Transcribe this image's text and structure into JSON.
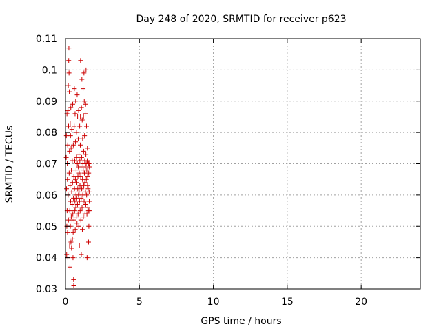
{
  "chart_data": {
    "type": "scatter",
    "title": "Day 248 of 2020, SRMTID for receiver p623",
    "xlabel": "GPS time / hours",
    "ylabel": "SRMTID / TECUs",
    "xlim": [
      0,
      24
    ],
    "ylim": [
      0.03,
      0.11
    ],
    "xticks": [
      0,
      5,
      10,
      15,
      20
    ],
    "xtick_labels": [
      "0",
      "5",
      "10",
      "15",
      "20"
    ],
    "yticks": [
      0.03,
      0.04,
      0.05,
      0.06,
      0.07,
      0.08,
      0.09,
      0.1,
      0.11
    ],
    "ytick_labels": [
      "0.03",
      "0.04",
      "0.05",
      "0.06",
      "0.07",
      "0.08",
      "0.09",
      "0.1",
      "0.11"
    ],
    "grid": true,
    "marker": "+",
    "color": "#cc0000",
    "series": [
      {
        "name": "",
        "points": [
          [
            0.05,
            0.072
          ],
          [
            0.06,
            0.079
          ],
          [
            0.07,
            0.062
          ],
          [
            0.08,
            0.041
          ],
          [
            0.09,
            0.05
          ],
          [
            0.1,
            0.086
          ],
          [
            0.11,
            0.055
          ],
          [
            0.12,
            0.07
          ],
          [
            0.13,
            0.065
          ],
          [
            0.14,
            0.048
          ],
          [
            0.15,
            0.076
          ],
          [
            0.16,
            0.04
          ],
          [
            0.17,
            0.087
          ],
          [
            0.18,
            0.06
          ],
          [
            0.19,
            0.095
          ],
          [
            0.2,
            0.052
          ],
          [
            0.21,
            0.082
          ],
          [
            0.22,
            0.103
          ],
          [
            0.23,
            0.107
          ],
          [
            0.24,
            0.099
          ],
          [
            0.25,
            0.067
          ],
          [
            0.26,
            0.093
          ],
          [
            0.27,
            0.074
          ],
          [
            0.28,
            0.044
          ],
          [
            0.29,
            0.055
          ],
          [
            0.3,
            0.037
          ],
          [
            0.31,
            0.063
          ],
          [
            0.32,
            0.083
          ],
          [
            0.33,
            0.05
          ],
          [
            0.34,
            0.079
          ],
          [
            0.35,
            0.058
          ],
          [
            0.36,
            0.088
          ],
          [
            0.37,
            0.045
          ],
          [
            0.38,
            0.075
          ],
          [
            0.39,
            0.053
          ],
          [
            0.4,
            0.068
          ],
          [
            0.41,
            0.043
          ],
          [
            0.42,
            0.061
          ],
          [
            0.43,
            0.081
          ],
          [
            0.44,
            0.052
          ],
          [
            0.45,
            0.057
          ],
          [
            0.46,
            0.071
          ],
          [
            0.47,
            0.046
          ],
          [
            0.48,
            0.064
          ],
          [
            0.49,
            0.089
          ],
          [
            0.5,
            0.054
          ],
          [
            0.51,
            0.04
          ],
          [
            0.52,
            0.048
          ],
          [
            0.53,
            0.076
          ],
          [
            0.54,
            0.059
          ],
          [
            0.55,
            0.033
          ],
          [
            0.56,
            0.031
          ],
          [
            0.57,
            0.066
          ],
          [
            0.58,
            0.052
          ],
          [
            0.59,
            0.082
          ],
          [
            0.6,
            0.094
          ],
          [
            0.61,
            0.062
          ],
          [
            0.62,
            0.055
          ],
          [
            0.63,
            0.071
          ],
          [
            0.64,
            0.058
          ],
          [
            0.65,
            0.086
          ],
          [
            0.66,
            0.049
          ],
          [
            0.67,
            0.065
          ],
          [
            0.68,
            0.077
          ],
          [
            0.69,
            0.09
          ],
          [
            0.7,
            0.056
          ],
          [
            0.71,
            0.06
          ],
          [
            0.72,
            0.068
          ],
          [
            0.73,
            0.053
          ],
          [
            0.74,
            0.08
          ],
          [
            0.75,
            0.072
          ],
          [
            0.76,
            0.059
          ],
          [
            0.77,
            0.064
          ],
          [
            0.78,
            0.051
          ],
          [
            0.79,
            0.092
          ],
          [
            0.8,
            0.07
          ],
          [
            0.81,
            0.057
          ],
          [
            0.82,
            0.085
          ],
          [
            0.83,
            0.062
          ],
          [
            0.84,
            0.066
          ],
          [
            0.85,
            0.054
          ],
          [
            0.86,
            0.078
          ],
          [
            0.87,
            0.069
          ],
          [
            0.88,
            0.06
          ],
          [
            0.89,
            0.087
          ],
          [
            0.9,
            0.05
          ],
          [
            0.91,
            0.073
          ],
          [
            0.92,
            0.061
          ],
          [
            0.93,
            0.067
          ],
          [
            0.94,
            0.044
          ],
          [
            0.95,
            0.058
          ],
          [
            0.96,
            0.082
          ],
          [
            0.97,
            0.071
          ],
          [
            0.98,
            0.063
          ],
          [
            0.99,
            0.055
          ],
          [
            1.0,
            0.076
          ],
          [
            1.01,
            0.085
          ],
          [
            1.02,
            0.103
          ],
          [
            1.03,
            0.066
          ],
          [
            1.04,
            0.052
          ],
          [
            1.05,
            0.069
          ],
          [
            1.06,
            0.059
          ],
          [
            1.07,
            0.041
          ],
          [
            1.08,
            0.088
          ],
          [
            1.09,
            0.072
          ],
          [
            1.1,
            0.062
          ],
          [
            1.11,
            0.097
          ],
          [
            1.12,
            0.056
          ],
          [
            1.13,
            0.084
          ],
          [
            1.14,
            0.049
          ],
          [
            1.15,
            0.065
          ],
          [
            1.16,
            0.078
          ],
          [
            1.17,
            0.06
          ],
          [
            1.18,
            0.07
          ],
          [
            1.19,
            0.094
          ],
          [
            1.2,
            0.068
          ],
          [
            1.21,
            0.053
          ],
          [
            1.22,
            0.085
          ],
          [
            1.23,
            0.074
          ],
          [
            1.24,
            0.063
          ],
          [
            1.25,
            0.099
          ],
          [
            1.26,
            0.058
          ],
          [
            1.27,
            0.09
          ],
          [
            1.28,
            0.067
          ],
          [
            1.29,
            0.079
          ],
          [
            1.3,
            0.071
          ],
          [
            1.31,
            0.064
          ],
          [
            1.32,
            0.054
          ],
          [
            1.33,
            0.086
          ],
          [
            1.34,
            0.069
          ],
          [
            1.35,
            0.061
          ],
          [
            1.36,
            0.089
          ],
          [
            1.37,
            0.057
          ],
          [
            1.38,
            0.073
          ],
          [
            1.39,
            0.1
          ],
          [
            1.4,
            0.07
          ],
          [
            1.41,
            0.065
          ],
          [
            1.42,
            0.082
          ],
          [
            1.43,
            0.06
          ],
          [
            1.44,
            0.068
          ],
          [
            1.45,
            0.054
          ],
          [
            1.46,
            0.04
          ],
          [
            1.47,
            0.071
          ],
          [
            1.48,
            0.075
          ],
          [
            1.49,
            0.063
          ],
          [
            1.5,
            0.066
          ],
          [
            1.51,
            0.056
          ],
          [
            1.52,
            0.069
          ],
          [
            1.53,
            0.062
          ],
          [
            1.54,
            0.07
          ],
          [
            1.55,
            0.055
          ],
          [
            1.56,
            0.045
          ],
          [
            1.57,
            0.067
          ],
          [
            1.58,
            0.05
          ],
          [
            1.59,
            0.07
          ],
          [
            1.6,
            0.061
          ],
          [
            1.61,
            0.058
          ],
          [
            1.62,
            0.069
          ],
          [
            1.63,
            0.055
          ]
        ]
      }
    ]
  }
}
